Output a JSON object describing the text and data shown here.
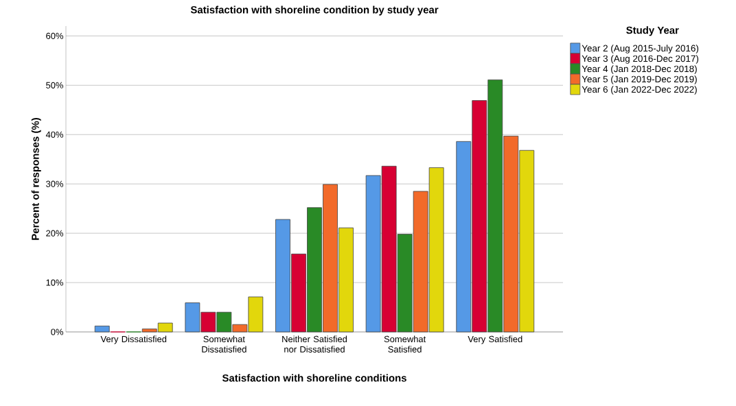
{
  "chart_data": {
    "type": "bar",
    "title": "Satisfaction with shoreline condition by study year",
    "xlabel": "Satisfaction with shoreline conditions",
    "ylabel": "Percent of responses (%)",
    "legend_title": "Study Year",
    "categories": [
      "Very Dissatisfied",
      "Somewhat Dissatisfied",
      "Neither Satisfied nor Dissatisfied",
      "Somewhat Satisfied",
      "Very Satisfied"
    ],
    "series": [
      {
        "name": "Year 2 (Aug 2015-July 2016)",
        "color": "#5599e6",
        "values": [
          1.2,
          5.9,
          22.8,
          31.7,
          38.6
        ]
      },
      {
        "name": "Year 3 (Aug 2016-Dec 2017)",
        "color": "#d70033",
        "values": [
          0,
          4.0,
          15.8,
          33.6,
          46.9
        ]
      },
      {
        "name": "Year 4 (Jan 2018-Dec 2018)",
        "color": "#298a26",
        "values": [
          0,
          4.0,
          25.2,
          19.8,
          51.1
        ]
      },
      {
        "name": "Year 5 (Jan 2019-Dec 2019)",
        "color": "#f26a2a",
        "values": [
          0.6,
          1.5,
          29.9,
          28.5,
          39.7
        ]
      },
      {
        "name": "Year 6 (Jan 2022-Dec 2022)",
        "color": "#e2d70c",
        "values": [
          1.8,
          7.1,
          21.1,
          33.3,
          36.8
        ]
      }
    ],
    "ylim": [
      0,
      62
    ],
    "yticks": [
      {
        "value": 0,
        "label": "0%"
      },
      {
        "value": 10,
        "label": "10%"
      },
      {
        "value": 20,
        "label": "20%"
      },
      {
        "value": 30,
        "label": "30%"
      },
      {
        "value": 40,
        "label": "40%"
      },
      {
        "value": 50,
        "label": "50%"
      },
      {
        "value": 60,
        "label": "60%"
      }
    ],
    "grid": "y",
    "legend": "right"
  }
}
